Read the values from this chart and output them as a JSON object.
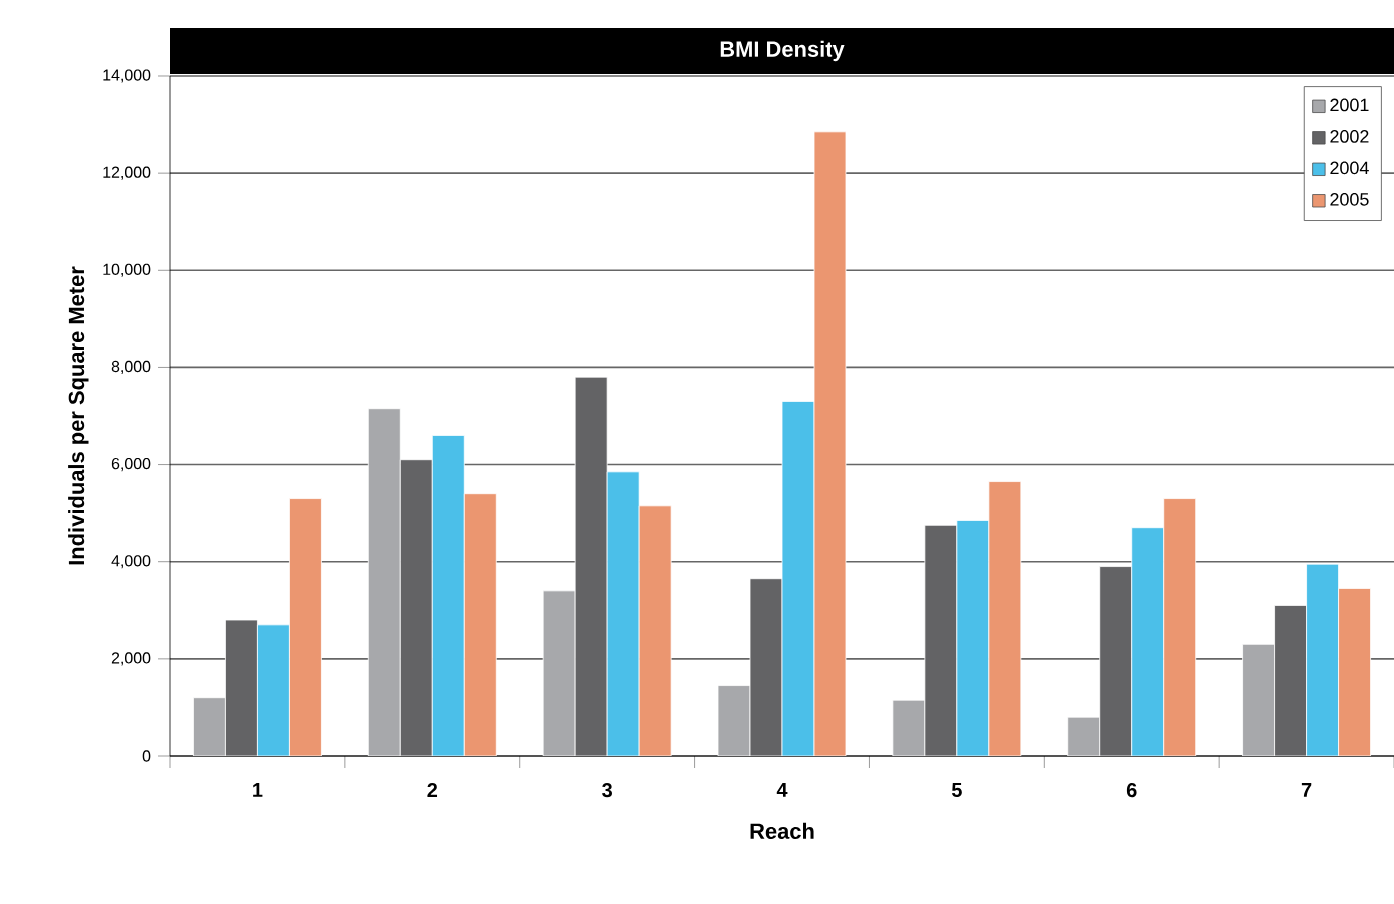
{
  "chart_data": {
    "type": "bar",
    "title": "BMI Density",
    "xlabel": "Reach",
    "ylabel": "Individuals per Square Meter",
    "categories": [
      "1",
      "2",
      "3",
      "4",
      "5",
      "6",
      "7"
    ],
    "series": [
      {
        "name": "2001",
        "color": "#a7a8ab",
        "values": [
          1200,
          7150,
          3400,
          1450,
          1150,
          800,
          2300
        ]
      },
      {
        "name": "2002",
        "color": "#636365",
        "values": [
          2800,
          6100,
          7800,
          3650,
          4750,
          3900,
          3100
        ]
      },
      {
        "name": "2004",
        "color": "#4bbfe9",
        "values": [
          2700,
          6600,
          5850,
          7300,
          4850,
          4700,
          3950
        ]
      },
      {
        "name": "2005",
        "color": "#eb9670",
        "values": [
          5300,
          5400,
          5150,
          12850,
          5650,
          5300,
          3450
        ]
      }
    ],
    "ylim": [
      0,
      14000
    ],
    "yticks": [
      0,
      {
        "value": 2000,
        "label": "2,000"
      },
      {
        "value": 4000,
        "label": "4,000"
      },
      {
        "value": 6000,
        "label": "6,000"
      },
      {
        "value": 8000,
        "label": "8,000"
      },
      {
        "value": 10000,
        "label": "10,000"
      },
      {
        "value": 12000,
        "label": "12,000"
      },
      {
        "value": 14000,
        "label": "14,000"
      }
    ],
    "grid": "y",
    "legend": "top right"
  }
}
